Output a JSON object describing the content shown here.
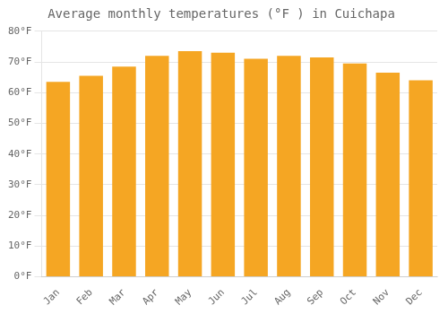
{
  "chart_data": {
    "type": "bar",
    "title": "Average monthly temperatures (°F ) in Cuichapa",
    "categories": [
      "Jan",
      "Feb",
      "Mar",
      "Apr",
      "May",
      "Jun",
      "Jul",
      "Aug",
      "Sep",
      "Oct",
      "Nov",
      "Dec"
    ],
    "values": [
      63.5,
      65.5,
      68.5,
      72.0,
      73.5,
      73.0,
      71.0,
      72.0,
      71.5,
      69.5,
      66.5,
      64.0
    ],
    "color": "#F5A623",
    "ylim": [
      0,
      80
    ],
    "yticks": [
      {
        "value": 0,
        "label": "0°F"
      },
      {
        "value": 10,
        "label": "10°F"
      },
      {
        "value": 20,
        "label": "20°F"
      },
      {
        "value": 30,
        "label": "30°F"
      },
      {
        "value": 40,
        "label": "40°F"
      },
      {
        "value": 50,
        "label": "50°F"
      },
      {
        "value": 60,
        "label": "60°F"
      },
      {
        "value": 70,
        "label": "70°F"
      },
      {
        "value": 80,
        "label": "80°F"
      }
    ],
    "grid": true
  }
}
